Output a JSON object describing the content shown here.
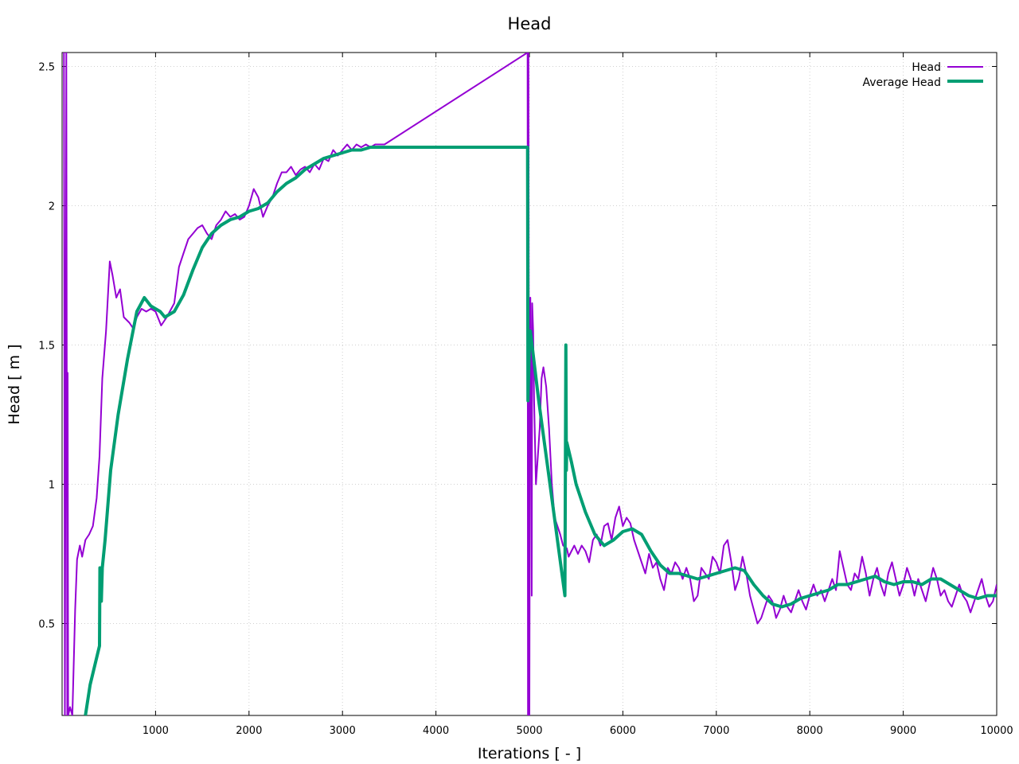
{
  "chart_data": {
    "type": "line",
    "title": "Head",
    "xlabel": "Iterations [ - ]",
    "ylabel": "Head [ m ]",
    "xlim": [
      0,
      10000
    ],
    "ylim": [
      0.17,
      2.55
    ],
    "xticks": [
      1000,
      2000,
      3000,
      4000,
      5000,
      6000,
      7000,
      8000,
      9000,
      10000
    ],
    "yticks": [
      0.5,
      1,
      1.5,
      2,
      2.5
    ],
    "grid": true,
    "legend_position": "top-right",
    "series": [
      {
        "name": "Head",
        "color": "#9400d3",
        "line_width": 2,
        "points": [
          [
            20,
            2.55
          ],
          [
            30,
            0.17
          ],
          [
            45,
            2.55
          ],
          [
            55,
            0.17
          ],
          [
            60,
            1.4
          ],
          [
            65,
            0.17
          ],
          [
            85,
            0.2
          ],
          [
            110,
            0.17
          ],
          [
            140,
            0.55
          ],
          [
            160,
            0.73
          ],
          [
            190,
            0.78
          ],
          [
            215,
            0.74
          ],
          [
            250,
            0.8
          ],
          [
            290,
            0.82
          ],
          [
            330,
            0.85
          ],
          [
            370,
            0.95
          ],
          [
            400,
            1.1
          ],
          [
            430,
            1.38
          ],
          [
            470,
            1.55
          ],
          [
            510,
            1.8
          ],
          [
            540,
            1.75
          ],
          [
            580,
            1.67
          ],
          [
            620,
            1.7
          ],
          [
            660,
            1.6
          ],
          [
            720,
            1.58
          ],
          [
            760,
            1.56
          ],
          [
            800,
            1.6
          ],
          [
            850,
            1.63
          ],
          [
            900,
            1.62
          ],
          [
            950,
            1.63
          ],
          [
            1000,
            1.62
          ],
          [
            1060,
            1.57
          ],
          [
            1120,
            1.6
          ],
          [
            1200,
            1.65
          ],
          [
            1250,
            1.78
          ],
          [
            1300,
            1.83
          ],
          [
            1350,
            1.88
          ],
          [
            1400,
            1.9
          ],
          [
            1450,
            1.92
          ],
          [
            1500,
            1.93
          ],
          [
            1550,
            1.9
          ],
          [
            1600,
            1.88
          ],
          [
            1650,
            1.93
          ],
          [
            1700,
            1.95
          ],
          [
            1750,
            1.98
          ],
          [
            1800,
            1.96
          ],
          [
            1850,
            1.97
          ],
          [
            1900,
            1.95
          ],
          [
            1950,
            1.96
          ],
          [
            2000,
            2.0
          ],
          [
            2050,
            2.06
          ],
          [
            2100,
            2.03
          ],
          [
            2150,
            1.96
          ],
          [
            2200,
            2.0
          ],
          [
            2250,
            2.03
          ],
          [
            2300,
            2.08
          ],
          [
            2350,
            2.12
          ],
          [
            2400,
            2.12
          ],
          [
            2450,
            2.14
          ],
          [
            2500,
            2.11
          ],
          [
            2550,
            2.13
          ],
          [
            2600,
            2.14
          ],
          [
            2650,
            2.12
          ],
          [
            2700,
            2.15
          ],
          [
            2750,
            2.13
          ],
          [
            2800,
            2.17
          ],
          [
            2850,
            2.16
          ],
          [
            2900,
            2.2
          ],
          [
            2950,
            2.18
          ],
          [
            3000,
            2.2
          ],
          [
            3050,
            2.22
          ],
          [
            3100,
            2.2
          ],
          [
            3150,
            2.22
          ],
          [
            3200,
            2.21
          ],
          [
            3250,
            2.22
          ],
          [
            3300,
            2.21
          ],
          [
            3350,
            2.22
          ],
          [
            3400,
            2.22
          ],
          [
            3450,
            2.22
          ],
          [
            4980,
            2.55
          ],
          [
            4985,
            0.17
          ],
          [
            4990,
            2.55
          ],
          [
            5000,
            0.17
          ],
          [
            5005,
            1.2
          ],
          [
            5010,
            1.67
          ],
          [
            5015,
            1.3
          ],
          [
            5020,
            1.45
          ],
          [
            5025,
            0.6
          ],
          [
            5030,
            1.65
          ],
          [
            5040,
            1.55
          ],
          [
            5050,
            1.3
          ],
          [
            5070,
            1.0
          ],
          [
            5090,
            1.1
          ],
          [
            5110,
            1.2
          ],
          [
            5130,
            1.38
          ],
          [
            5150,
            1.42
          ],
          [
            5180,
            1.35
          ],
          [
            5210,
            1.2
          ],
          [
            5240,
            1.0
          ],
          [
            5270,
            0.88
          ],
          [
            5300,
            0.85
          ],
          [
            5330,
            0.82
          ],
          [
            5360,
            0.78
          ],
          [
            5400,
            0.77
          ],
          [
            5420,
            0.74
          ],
          [
            5450,
            0.76
          ],
          [
            5480,
            0.78
          ],
          [
            5520,
            0.75
          ],
          [
            5560,
            0.78
          ],
          [
            5600,
            0.76
          ],
          [
            5640,
            0.72
          ],
          [
            5680,
            0.8
          ],
          [
            5720,
            0.82
          ],
          [
            5760,
            0.78
          ],
          [
            5800,
            0.85
          ],
          [
            5840,
            0.86
          ],
          [
            5880,
            0.8
          ],
          [
            5920,
            0.88
          ],
          [
            5960,
            0.92
          ],
          [
            6000,
            0.85
          ],
          [
            6040,
            0.88
          ],
          [
            6080,
            0.86
          ],
          [
            6120,
            0.8
          ],
          [
            6160,
            0.76
          ],
          [
            6200,
            0.72
          ],
          [
            6240,
            0.68
          ],
          [
            6280,
            0.75
          ],
          [
            6320,
            0.7
          ],
          [
            6360,
            0.72
          ],
          [
            6400,
            0.66
          ],
          [
            6440,
            0.62
          ],
          [
            6480,
            0.7
          ],
          [
            6520,
            0.68
          ],
          [
            6560,
            0.72
          ],
          [
            6600,
            0.7
          ],
          [
            6640,
            0.66
          ],
          [
            6680,
            0.7
          ],
          [
            6720,
            0.66
          ],
          [
            6760,
            0.58
          ],
          [
            6800,
            0.6
          ],
          [
            6840,
            0.7
          ],
          [
            6880,
            0.68
          ],
          [
            6920,
            0.66
          ],
          [
            6960,
            0.74
          ],
          [
            7000,
            0.72
          ],
          [
            7040,
            0.68
          ],
          [
            7080,
            0.78
          ],
          [
            7120,
            0.8
          ],
          [
            7160,
            0.72
          ],
          [
            7200,
            0.62
          ],
          [
            7240,
            0.66
          ],
          [
            7280,
            0.74
          ],
          [
            7320,
            0.68
          ],
          [
            7360,
            0.6
          ],
          [
            7400,
            0.55
          ],
          [
            7440,
            0.5
          ],
          [
            7480,
            0.52
          ],
          [
            7520,
            0.56
          ],
          [
            7560,
            0.6
          ],
          [
            7600,
            0.58
          ],
          [
            7640,
            0.52
          ],
          [
            7680,
            0.55
          ],
          [
            7720,
            0.6
          ],
          [
            7760,
            0.56
          ],
          [
            7800,
            0.54
          ],
          [
            7840,
            0.58
          ],
          [
            7880,
            0.62
          ],
          [
            7920,
            0.58
          ],
          [
            7960,
            0.55
          ],
          [
            8000,
            0.6
          ],
          [
            8040,
            0.64
          ],
          [
            8080,
            0.6
          ],
          [
            8120,
            0.62
          ],
          [
            8160,
            0.58
          ],
          [
            8200,
            0.62
          ],
          [
            8240,
            0.66
          ],
          [
            8280,
            0.62
          ],
          [
            8320,
            0.76
          ],
          [
            8360,
            0.7
          ],
          [
            8400,
            0.64
          ],
          [
            8440,
            0.62
          ],
          [
            8480,
            0.68
          ],
          [
            8520,
            0.66
          ],
          [
            8560,
            0.74
          ],
          [
            8600,
            0.68
          ],
          [
            8640,
            0.6
          ],
          [
            8680,
            0.66
          ],
          [
            8720,
            0.7
          ],
          [
            8760,
            0.64
          ],
          [
            8800,
            0.6
          ],
          [
            8840,
            0.68
          ],
          [
            8880,
            0.72
          ],
          [
            8920,
            0.66
          ],
          [
            8960,
            0.6
          ],
          [
            9000,
            0.64
          ],
          [
            9040,
            0.7
          ],
          [
            9080,
            0.66
          ],
          [
            9120,
            0.6
          ],
          [
            9160,
            0.66
          ],
          [
            9200,
            0.62
          ],
          [
            9240,
            0.58
          ],
          [
            9280,
            0.64
          ],
          [
            9320,
            0.7
          ],
          [
            9360,
            0.66
          ],
          [
            9400,
            0.6
          ],
          [
            9440,
            0.62
          ],
          [
            9480,
            0.58
          ],
          [
            9520,
            0.56
          ],
          [
            9560,
            0.6
          ],
          [
            9600,
            0.64
          ],
          [
            9640,
            0.6
          ],
          [
            9680,
            0.58
          ],
          [
            9720,
            0.54
          ],
          [
            9760,
            0.58
          ],
          [
            9800,
            0.62
          ],
          [
            9840,
            0.66
          ],
          [
            9880,
            0.6
          ],
          [
            9920,
            0.56
          ],
          [
            9960,
            0.58
          ],
          [
            10000,
            0.64
          ]
        ]
      },
      {
        "name": "Average Head",
        "color": "#009e73",
        "line_width": 4,
        "points": [
          [
            250,
            0.17
          ],
          [
            300,
            0.28
          ],
          [
            350,
            0.35
          ],
          [
            400,
            0.42
          ],
          [
            405,
            0.7
          ],
          [
            420,
            0.58
          ],
          [
            430,
            0.7
          ],
          [
            460,
            0.8
          ],
          [
            520,
            1.05
          ],
          [
            600,
            1.25
          ],
          [
            700,
            1.45
          ],
          [
            800,
            1.62
          ],
          [
            880,
            1.67
          ],
          [
            950,
            1.64
          ],
          [
            1050,
            1.62
          ],
          [
            1100,
            1.6
          ],
          [
            1200,
            1.62
          ],
          [
            1300,
            1.68
          ],
          [
            1400,
            1.77
          ],
          [
            1500,
            1.85
          ],
          [
            1600,
            1.9
          ],
          [
            1700,
            1.93
          ],
          [
            1800,
            1.95
          ],
          [
            1900,
            1.96
          ],
          [
            2000,
            1.98
          ],
          [
            2100,
            1.99
          ],
          [
            2200,
            2.01
          ],
          [
            2300,
            2.05
          ],
          [
            2400,
            2.08
          ],
          [
            2500,
            2.1
          ],
          [
            2600,
            2.13
          ],
          [
            2700,
            2.15
          ],
          [
            2800,
            2.17
          ],
          [
            2900,
            2.18
          ],
          [
            3000,
            2.19
          ],
          [
            3100,
            2.2
          ],
          [
            3200,
            2.2
          ],
          [
            3300,
            2.21
          ],
          [
            3400,
            2.21
          ],
          [
            3500,
            2.21
          ],
          [
            4000,
            2.21
          ],
          [
            4500,
            2.21
          ],
          [
            4980,
            2.21
          ],
          [
            4985,
            1.3
          ],
          [
            5000,
            1.5
          ],
          [
            5010,
            1.55
          ],
          [
            5100,
            1.3
          ],
          [
            5200,
            1.05
          ],
          [
            5300,
            0.8
          ],
          [
            5380,
            0.6
          ],
          [
            5390,
            1.5
          ],
          [
            5395,
            1.05
          ],
          [
            5400,
            1.15
          ],
          [
            5450,
            1.08
          ],
          [
            5500,
            1.0
          ],
          [
            5600,
            0.9
          ],
          [
            5700,
            0.82
          ],
          [
            5800,
            0.78
          ],
          [
            5900,
            0.8
          ],
          [
            6000,
            0.83
          ],
          [
            6100,
            0.84
          ],
          [
            6200,
            0.82
          ],
          [
            6300,
            0.76
          ],
          [
            6400,
            0.71
          ],
          [
            6500,
            0.68
          ],
          [
            6600,
            0.68
          ],
          [
            6700,
            0.67
          ],
          [
            6800,
            0.66
          ],
          [
            6900,
            0.67
          ],
          [
            7000,
            0.68
          ],
          [
            7100,
            0.69
          ],
          [
            7200,
            0.7
          ],
          [
            7300,
            0.69
          ],
          [
            7400,
            0.64
          ],
          [
            7500,
            0.6
          ],
          [
            7600,
            0.57
          ],
          [
            7700,
            0.56
          ],
          [
            7800,
            0.57
          ],
          [
            7900,
            0.59
          ],
          [
            8000,
            0.6
          ],
          [
            8100,
            0.61
          ],
          [
            8200,
            0.62
          ],
          [
            8300,
            0.64
          ],
          [
            8400,
            0.64
          ],
          [
            8500,
            0.65
          ],
          [
            8600,
            0.66
          ],
          [
            8700,
            0.67
          ],
          [
            8800,
            0.65
          ],
          [
            8900,
            0.64
          ],
          [
            9000,
            0.65
          ],
          [
            9100,
            0.65
          ],
          [
            9200,
            0.64
          ],
          [
            9300,
            0.66
          ],
          [
            9400,
            0.66
          ],
          [
            9500,
            0.64
          ],
          [
            9600,
            0.62
          ],
          [
            9700,
            0.6
          ],
          [
            9800,
            0.59
          ],
          [
            9900,
            0.6
          ],
          [
            10000,
            0.6
          ]
        ]
      }
    ]
  }
}
